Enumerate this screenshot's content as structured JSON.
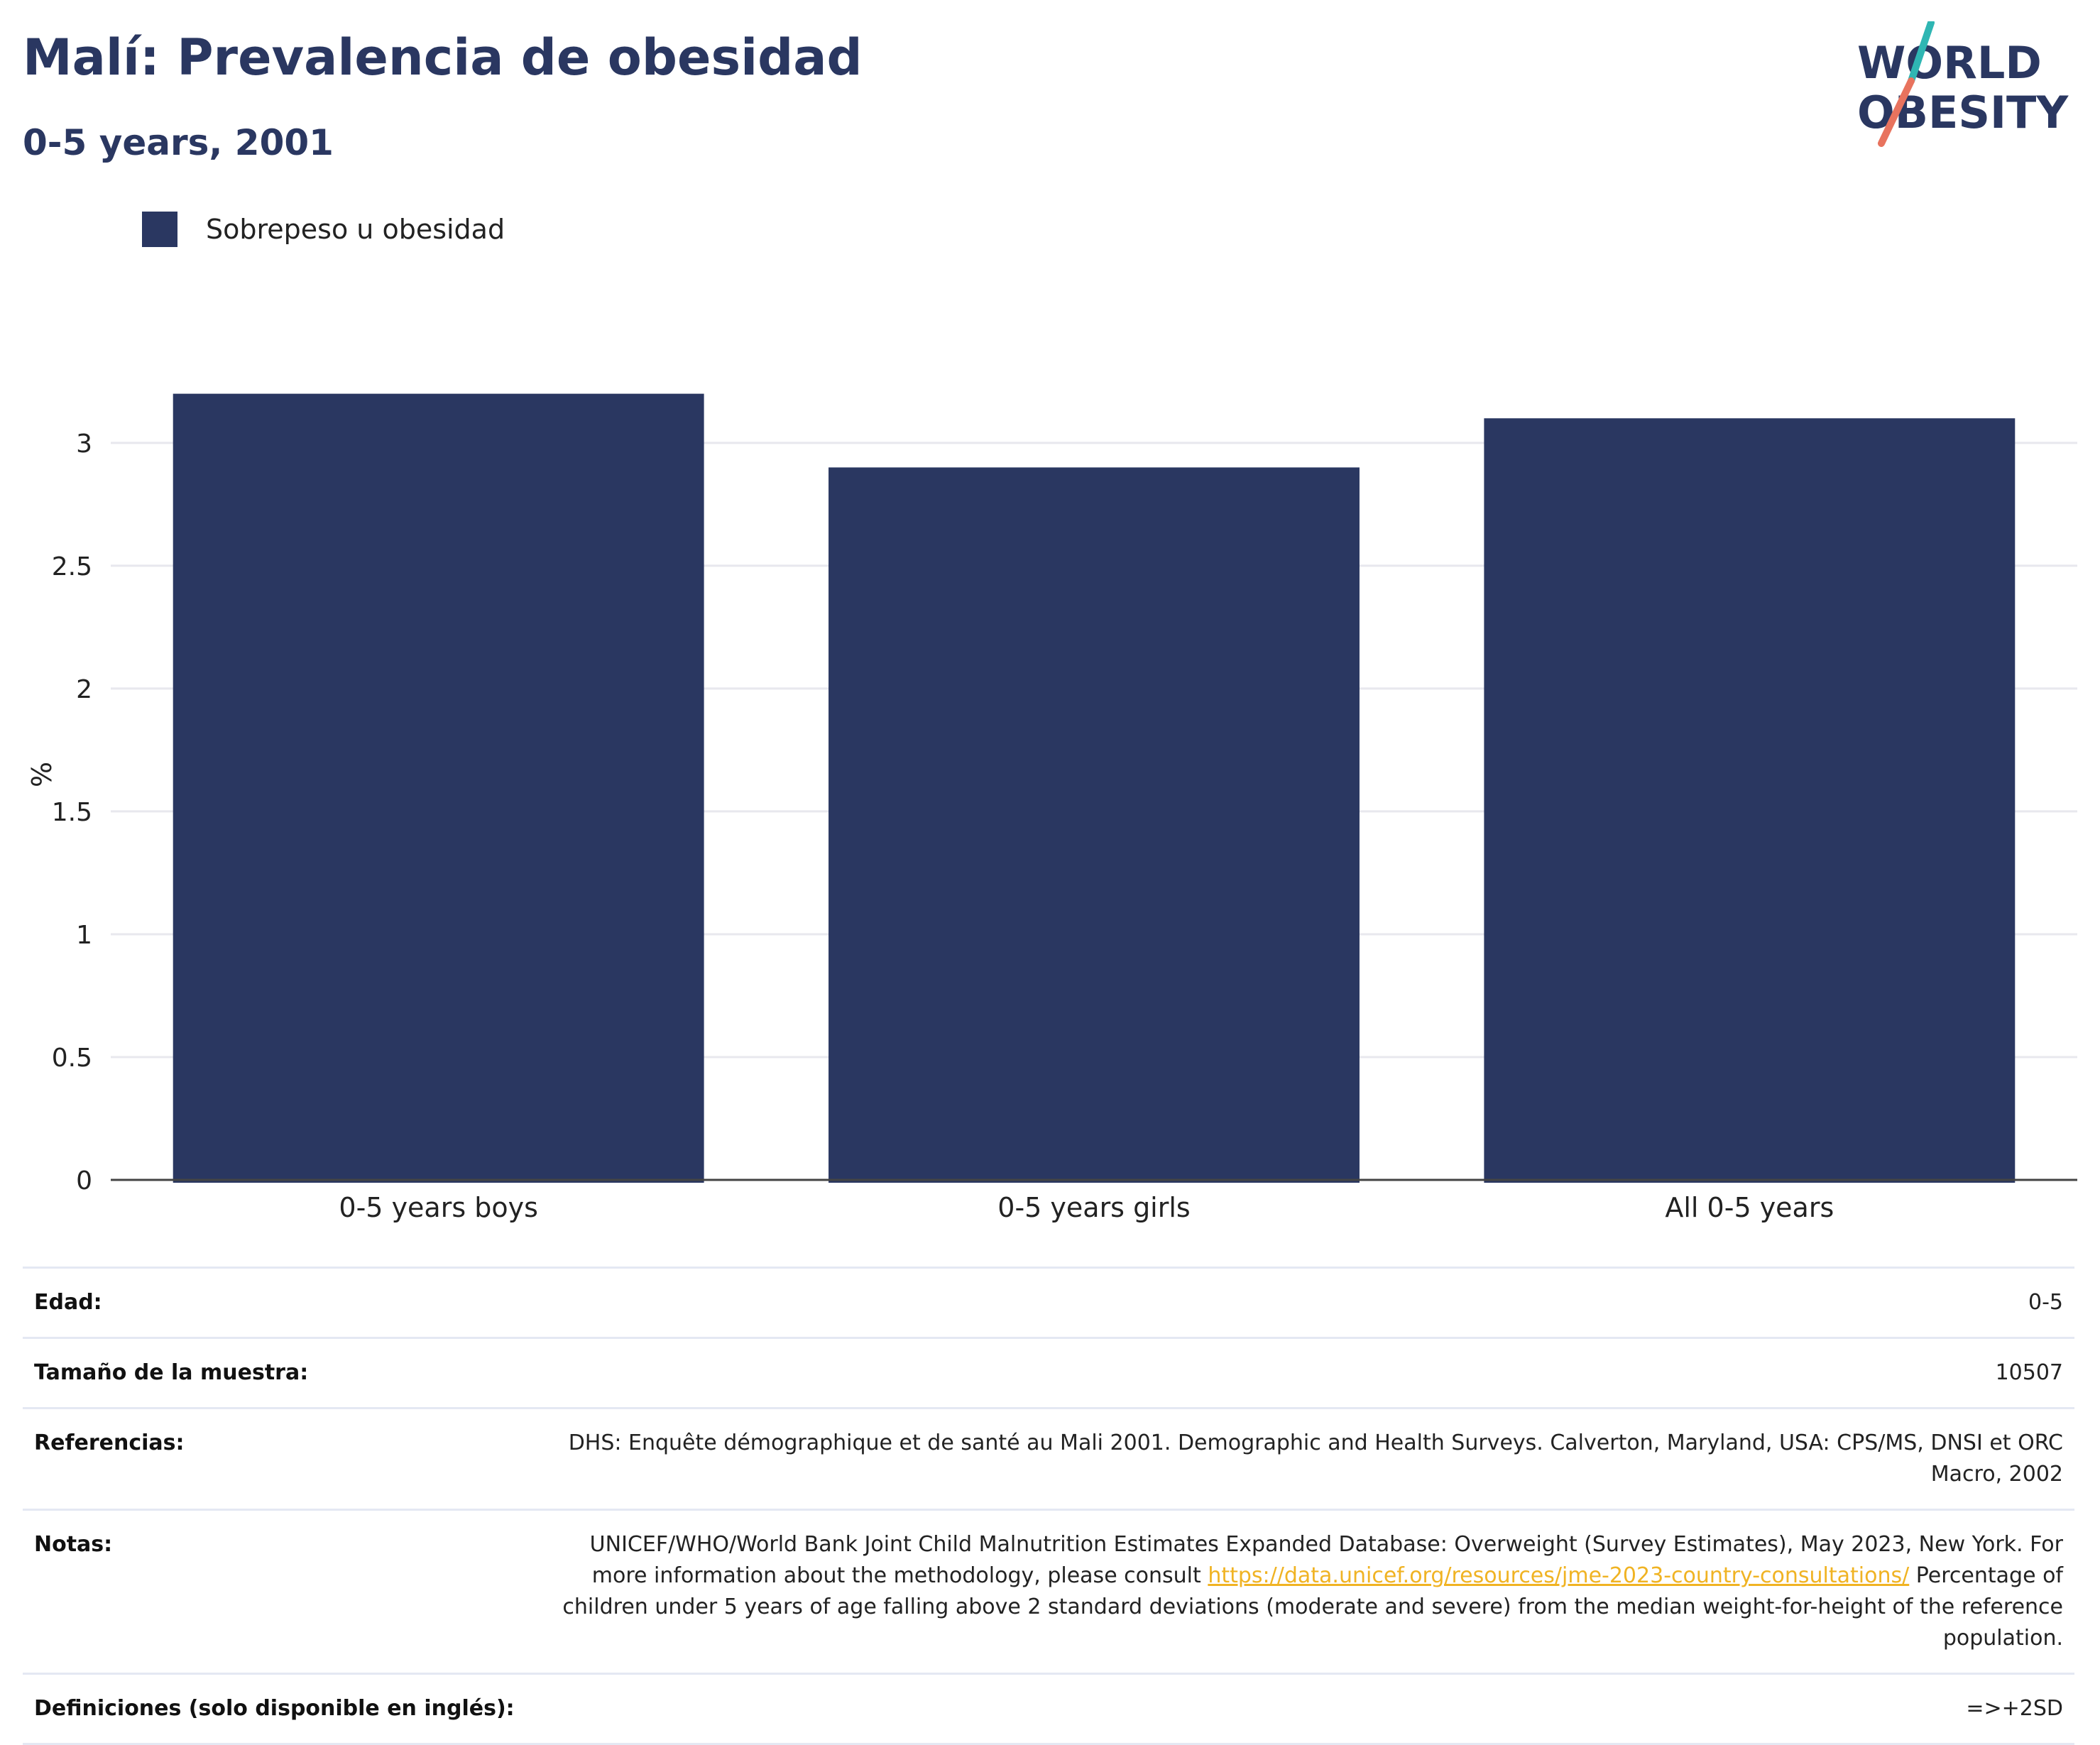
{
  "title": "Malí: Prevalencia de obesidad",
  "subtitle": "0-5 years, 2001",
  "logo": {
    "line1": "WORLD",
    "line2": "OBESITY"
  },
  "colors": {
    "bar": "#2a3761",
    "title": "#2a3761",
    "link": "#f0b323",
    "logo_teal": "#2fb6b3",
    "logo_coral": "#e8735e"
  },
  "legend": {
    "label": "Sobrepeso u obesidad"
  },
  "chart_data": {
    "type": "bar",
    "categories": [
      "0-5 years boys",
      "0-5 years girls",
      "All 0-5 years"
    ],
    "series": [
      {
        "name": "Sobrepeso u obesidad",
        "values": [
          3.2,
          2.9,
          3.1
        ]
      }
    ],
    "ylabel": "%",
    "ylim": [
      0,
      3.3
    ],
    "yticks": [
      0,
      0.5,
      1,
      1.5,
      2,
      2.5,
      3
    ],
    "ytick_labels": [
      "0",
      "0.5",
      "1",
      "1.5",
      "2",
      "2.5",
      "3"
    ],
    "grid": true,
    "legend_position": "top-left"
  },
  "info": {
    "age": {
      "label": "Edad:",
      "value": "0-5"
    },
    "sample": {
      "label": "Tamaño de la muestra:",
      "value": "10507"
    },
    "references": {
      "label": "Referencias:",
      "value": "DHS: Enquête démographique et de santé au Mali 2001. Demographic and Health Surveys. Calverton, Maryland, USA: CPS/MS, DNSI et ORC Macro, 2002"
    },
    "notes": {
      "label": "Notas:",
      "text_before": "UNICEF/WHO/World Bank Joint Child Malnutrition Estimates Expanded Database: Overweight (Survey Estimates), May 2023, New York. For more information about the methodology, please consult ",
      "link": "https://data.unicef.org/resources/jme-2023-country-consultations/",
      "text_after": " Percentage of children under 5 years of age falling above 2 standard deviations (moderate and severe) from the median weight-for-height of the reference population."
    },
    "definitions": {
      "label": "Definiciones (solo disponible en inglés):",
      "value": "=>+2SD"
    }
  }
}
